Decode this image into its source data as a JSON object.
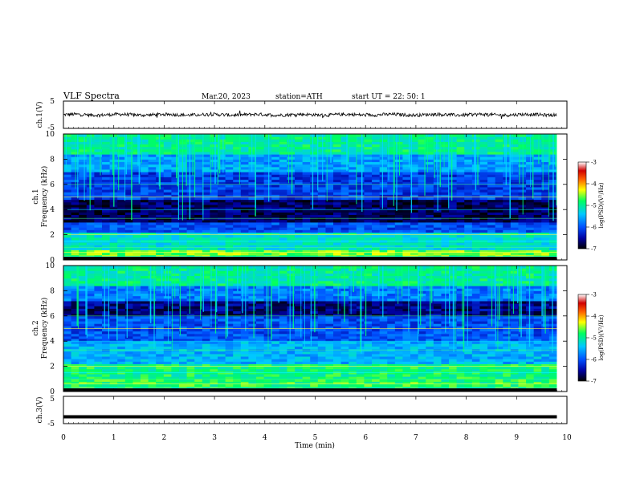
{
  "header": {
    "title": "VLF  Spectra",
    "date": "Mar.20, 2023",
    "station": "station=ATH",
    "start": "start  UT  =    22: 50: 1"
  },
  "chart_data": [
    {
      "type": "line",
      "panel": "ch1-waveform",
      "ylabel": "ch.1(V)",
      "ylim": [
        -5,
        5
      ],
      "yticks": [
        "5",
        "-5"
      ],
      "description_values": "noisy waveform centered near 0 V, amplitude about ±1 V, x from 0 to 9.8 min"
    },
    {
      "type": "heatmap",
      "panel": "ch1-spectrogram",
      "ylabel": [
        "ch.1",
        "Frequency  (kHz)"
      ],
      "ylim": [
        0,
        10
      ],
      "yticks": [
        "0",
        "2",
        "4",
        "6",
        "8",
        "10"
      ],
      "colorbar": {
        "label": "log(PSD)(V²/Hz)",
        "range": [
          -7,
          -3
        ],
        "ticks": [
          "-3",
          "-4",
          "-5",
          "-6",
          "-7"
        ],
        "colors": [
          "#000000",
          "#0000a0",
          "#0050ff",
          "#00c8ff",
          "#00ff60",
          "#ffff00",
          "#ff6000",
          "#d00000",
          "#ffffff"
        ]
      },
      "bands": [
        {
          "from": 0.0,
          "to": 0.8,
          "level": -4.6
        },
        {
          "from": 0.8,
          "to": 2.2,
          "level": -5.2
        },
        {
          "from": 2.2,
          "to": 3.0,
          "level": -6.0
        },
        {
          "from": 3.0,
          "to": 4.8,
          "level": -6.7
        },
        {
          "from": 4.8,
          "to": 7.0,
          "level": -6.1
        },
        {
          "from": 7.0,
          "to": 8.5,
          "level": -5.6
        },
        {
          "from": 8.5,
          "to": 10.0,
          "level": -5.0
        }
      ]
    },
    {
      "type": "heatmap",
      "panel": "ch2-spectrogram",
      "ylabel": [
        "ch.2",
        "Frequency  (kHz)"
      ],
      "ylim": [
        0,
        10
      ],
      "yticks": [
        "0",
        "2",
        "4",
        "6",
        "8",
        "10"
      ],
      "colorbar": {
        "label": "log(PSD)(V²/Hz)",
        "range": [
          -7,
          -3
        ],
        "ticks": [
          "-3",
          "-4",
          "-5",
          "-6",
          "-7"
        ]
      },
      "bands": [
        {
          "from": 0.0,
          "to": 1.0,
          "level": -4.8
        },
        {
          "from": 1.0,
          "to": 2.3,
          "level": -4.9
        },
        {
          "from": 2.3,
          "to": 4.0,
          "level": -5.5
        },
        {
          "from": 4.0,
          "to": 6.0,
          "level": -6.0
        },
        {
          "from": 6.0,
          "to": 7.2,
          "level": -6.6
        },
        {
          "from": 7.2,
          "to": 8.5,
          "level": -5.8
        },
        {
          "from": 8.5,
          "to": 10.0,
          "level": -5.0
        }
      ]
    },
    {
      "type": "line",
      "panel": "ch3-waveform",
      "ylabel": "ch.3(V)",
      "ylim": [
        -5,
        5
      ],
      "yticks": [
        "5",
        "-5"
      ],
      "constant_value": -2.5
    }
  ],
  "x_axis": {
    "label": "Time  (min)",
    "range": [
      0,
      10
    ],
    "data_end": 9.8,
    "ticks": [
      "0",
      "1",
      "2",
      "3",
      "4",
      "5",
      "6",
      "7",
      "8",
      "9",
      "10"
    ]
  }
}
